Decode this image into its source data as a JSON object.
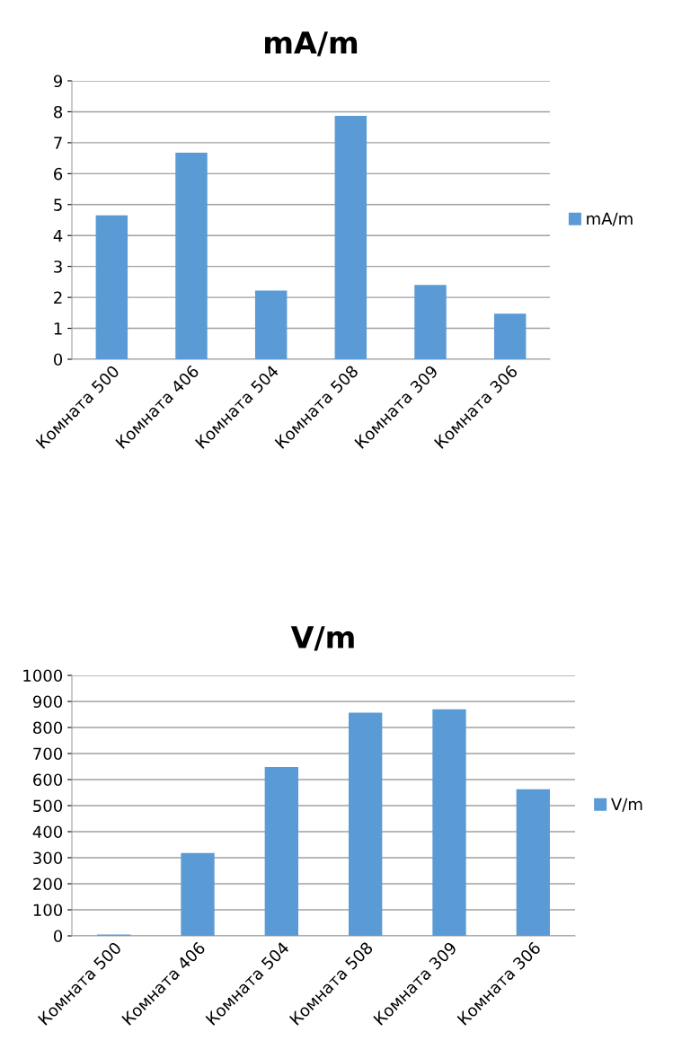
{
  "chart_data": [
    {
      "type": "bar",
      "title": "mA/m",
      "categories": [
        "Комната 500",
        "Комната 406",
        "Комната 504",
        "Комната 508",
        "Комната 309",
        "Комната 306"
      ],
      "series": [
        {
          "name": "mA/m",
          "color": "#5b9bd5",
          "values": [
            4.65,
            6.68,
            2.22,
            7.87,
            2.4,
            1.47
          ]
        }
      ],
      "ylim": [
        0,
        9
      ],
      "yticks": [
        0,
        1,
        2,
        3,
        4,
        5,
        6,
        7,
        8,
        9
      ],
      "grid": "y",
      "legend": "right"
    },
    {
      "type": "bar",
      "title": "V/m",
      "categories": [
        "Комната 500",
        "Комната 406",
        "Комната 504",
        "Комната 508",
        "Комната 309",
        "Комната 306"
      ],
      "series": [
        {
          "name": "V/m",
          "color": "#5b9bd5",
          "values": [
            5,
            318,
            648,
            857,
            870,
            563
          ]
        }
      ],
      "ylim": [
        0,
        1000
      ],
      "yticks": [
        0,
        100,
        200,
        300,
        400,
        500,
        600,
        700,
        800,
        900,
        1000
      ],
      "grid": "y",
      "legend": "right"
    }
  ]
}
